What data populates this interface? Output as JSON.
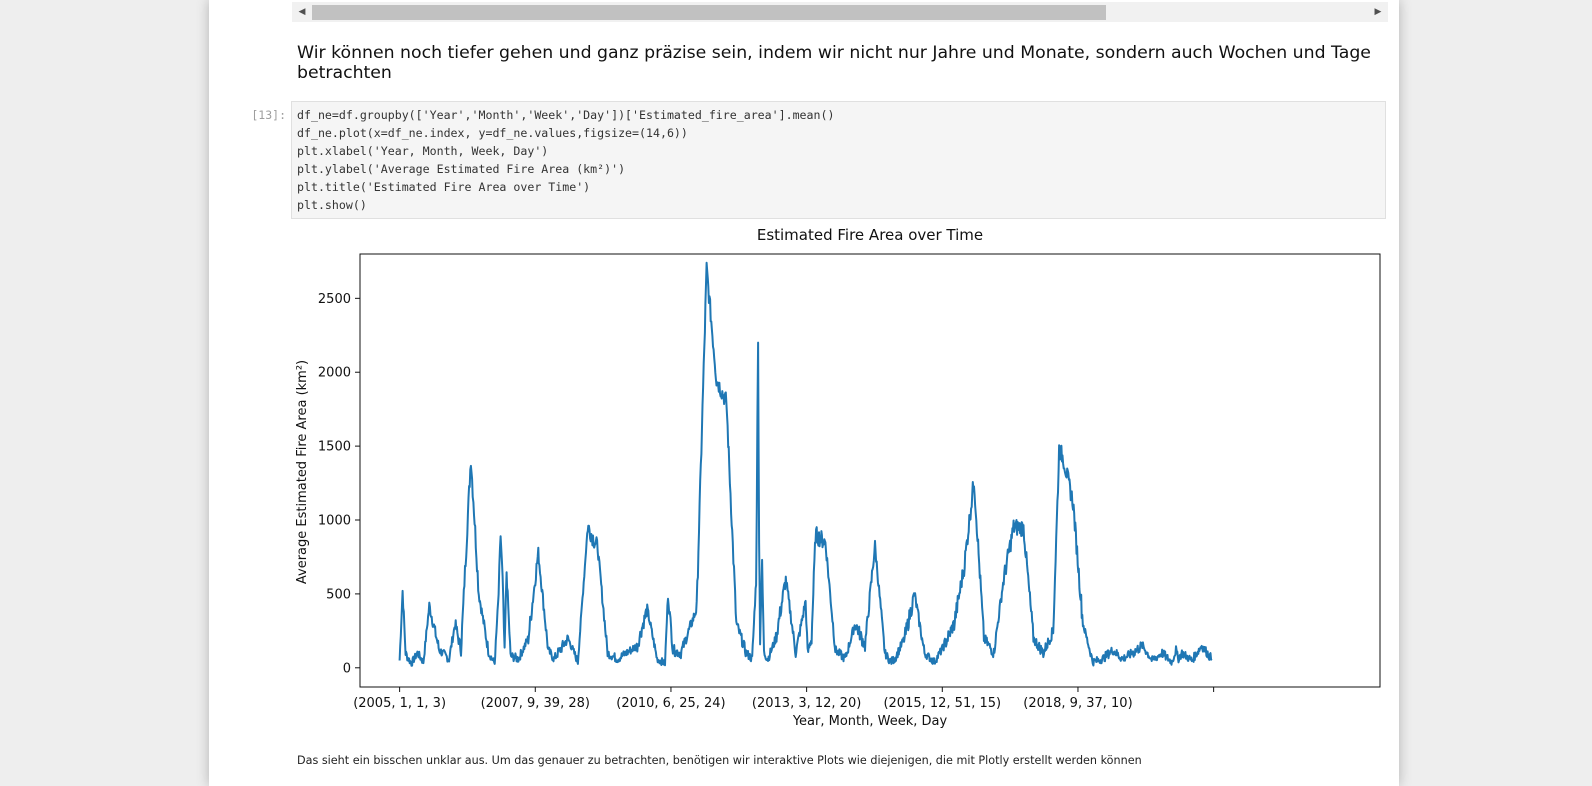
{
  "markdown": {
    "heading": "Wir können noch tiefer gehen und ganz präzise sein, indem wir nicht nur Jahre und Monate, sondern auch Wochen und Tage betrachten"
  },
  "cell": {
    "prompt": "[13]:",
    "code_lines": [
      "df_ne=df.groupby(['Year','Month','Week','Day'])['Estimated_fire_area'].mean()",
      "df_ne.plot(x=df_ne.index, y=df_ne.values,figsize=(14,6))",
      "plt.xlabel('Year, Month, Week, Day')",
      "plt.ylabel('Average Estimated Fire Area (km²)')",
      "plt.title('Estimated Fire Area over Time')",
      "plt.show()"
    ]
  },
  "footer": {
    "text": "Das sieht ein bisschen unklar aus. Um das genauer zu betrachten, benötigen wir interaktive Plots wie diejenigen, die mit Plotly erstellt werden können"
  },
  "colors": {
    "line": "#1f77b4",
    "page_bg": "#eeeeee",
    "cell_bg": "#f5f5f5"
  },
  "icons": {
    "scroll_left": "triangle-left-icon",
    "scroll_right": "triangle-right-icon"
  },
  "chart_data": {
    "type": "line",
    "title": "Estimated Fire Area over Time",
    "xlabel": "Year, Month, Week, Day",
    "ylabel": "Average Estimated Fire Area (km²)",
    "ylim": [
      -130,
      2800
    ],
    "yticks": [
      0,
      500,
      1000,
      1500,
      2000,
      2500
    ],
    "xlim": [
      -200,
      4950
    ],
    "xticks": [
      {
        "index": 0,
        "label": "(2005, 1, 1, 3)"
      },
      {
        "index": 685,
        "label": "(2007, 9, 39, 28)"
      },
      {
        "index": 1370,
        "label": "(2010, 6, 25, 24)"
      },
      {
        "index": 2055,
        "label": "(2013, 3, 12, 20)"
      },
      {
        "index": 2740,
        "label": "(2015, 12, 51, 15)"
      },
      {
        "index": 3425,
        "label": "(2018, 9, 37, 10)"
      },
      {
        "index": 4110,
        "label": ""
      }
    ],
    "grid": false,
    "series": [
      {
        "x": [
          0,
          15,
          30,
          45,
          60,
          90,
          120,
          150,
          200,
          250,
          280,
          310,
          330,
          360,
          400,
          450,
          480,
          500,
          510,
          520,
          530,
          540,
          560,
          600,
          650,
          700,
          750,
          780,
          800,
          850,
          900,
          950,
          1000,
          1050,
          1100,
          1200,
          1250,
          1300,
          1340,
          1355,
          1380,
          1420,
          1500,
          1550,
          1600,
          1650,
          1700,
          1750,
          1780,
          1800,
          1810,
          1815,
          1820,
          1830,
          1840,
          1860,
          1900,
          1950,
          2000,
          2050,
          2060,
          2080,
          2100,
          2150,
          2200,
          2250,
          2300,
          2350,
          2400,
          2450,
          2480,
          2500,
          2550,
          2600,
          2650,
          2700,
          2750,
          2800,
          2850,
          2900,
          2950,
          3000,
          3050,
          3100,
          3150,
          3200,
          3250,
          3300,
          3330,
          3350,
          3400,
          3450,
          3500,
          3550,
          3600,
          3650,
          3700,
          3750,
          3800,
          3850,
          3880,
          3900,
          3920,
          3930,
          3950,
          4000,
          4050,
          4100
        ],
        "y": [
          50,
          520,
          100,
          60,
          30,
          100,
          40,
          420,
          120,
          60,
          300,
          120,
          650,
          1420,
          500,
          100,
          30,
          500,
          900,
          600,
          100,
          650,
          80,
          60,
          200,
          780,
          120,
          60,
          100,
          200,
          40,
          960,
          810,
          100,
          60,
          150,
          400,
          60,
          30,
          500,
          120,
          100,
          400,
          2700,
          1950,
          1800,
          300,
          100,
          60,
          600,
          2180,
          880,
          200,
          700,
          100,
          60,
          200,
          600,
          100,
          450,
          100,
          200,
          900,
          850,
          120,
          60,
          300,
          150,
          830,
          100,
          40,
          60,
          200,
          500,
          100,
          40,
          150,
          300,
          680,
          1270,
          200,
          100,
          600,
          950,
          950,
          200,
          100,
          250,
          1480,
          1420,
          1120,
          300,
          40,
          60,
          120,
          60,
          100,
          150,
          50,
          100,
          60,
          40,
          120,
          60,
          100,
          50,
          150,
          60
        ]
      }
    ]
  }
}
